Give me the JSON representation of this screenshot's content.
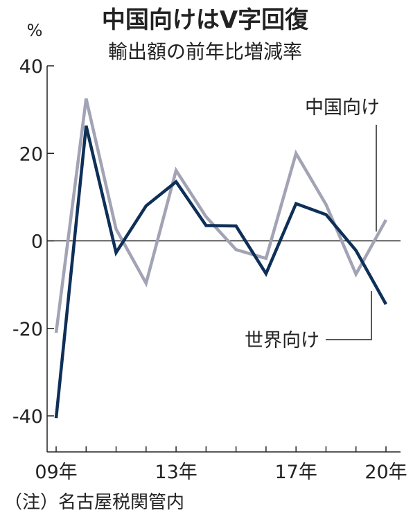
{
  "chart_data": {
    "type": "line",
    "title": "中国向けはV字回復",
    "subtitle": "輸出額の前年比増減率",
    "ylabel": "%",
    "xlabel": "",
    "x": [
      2009,
      2010,
      2011,
      2012,
      2013,
      2014,
      2015,
      2016,
      2017,
      2018,
      2019,
      2020
    ],
    "xticks": [
      {
        "value": 2009,
        "label": "09年"
      },
      {
        "value": 2013,
        "label": "13年"
      },
      {
        "value": 2017,
        "label": "17年"
      },
      {
        "value": 2020,
        "label": "20年"
      }
    ],
    "ylim": [
      -45,
      40
    ],
    "yticks": [
      {
        "value": 40,
        "label": "40"
      },
      {
        "value": 20,
        "label": "20"
      },
      {
        "value": 0,
        "label": "0"
      },
      {
        "value": -20,
        "label": "-20"
      },
      {
        "value": -40,
        "label": "-40"
      }
    ],
    "grid": false,
    "series": [
      {
        "name": "世界向け",
        "color": "#0e2f57",
        "values": [
          -40.5,
          26.3,
          -2.7,
          8.0,
          13.5,
          3.5,
          3.4,
          -7.5,
          8.5,
          6.0,
          -2.2,
          -14.5
        ]
      },
      {
        "name": "中国向け",
        "color": "#a2a3b4",
        "values": [
          -21.0,
          32.5,
          2.7,
          -9.7,
          16.1,
          5.5,
          -2.0,
          -4.0,
          20.0,
          8.3,
          -7.6,
          4.8
        ]
      }
    ],
    "annotations": [
      "中国向け",
      "世界向け"
    ]
  },
  "footnote": "（注）名古屋税関管内"
}
